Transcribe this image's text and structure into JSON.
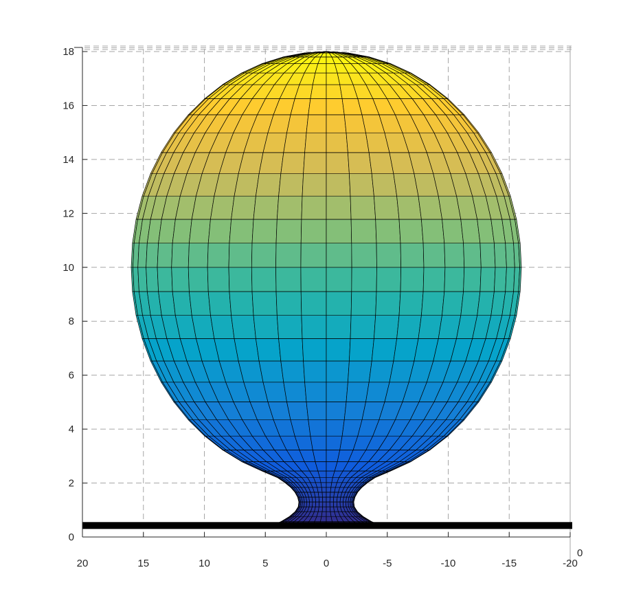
{
  "chart_data": {
    "type": "surface",
    "title": "",
    "xlabel": "",
    "ylabel": "",
    "zlabel": "",
    "view": "front (x horizontal reversed, z vertical)",
    "xlim": [
      20,
      -20
    ],
    "zlim": [
      0,
      18
    ],
    "xticks": [
      "20",
      "15",
      "10",
      "5",
      "0",
      "-5",
      "-10",
      "-15",
      "-20"
    ],
    "zticks": [
      "0",
      "2",
      "4",
      "6",
      "8",
      "10",
      "12",
      "14",
      "16",
      "18"
    ],
    "corner_tick": "0",
    "grid": true,
    "grid_style": "dashed",
    "colormap": "parula",
    "colormap_stops": [
      "#352a87",
      "#0f5cdd",
      "#1481d6",
      "#06a4ca",
      "#2eb7a4",
      "#87bf77",
      "#d1bb59",
      "#fec832",
      "#f9fb0e"
    ],
    "edge_color": "#000000",
    "objects": [
      {
        "name": "sphere",
        "center_z": 10,
        "half_height_z": 8,
        "half_width_x": 16
      },
      {
        "name": "neck",
        "z_range": [
          0.4,
          2.2
        ],
        "min_radius_x": 2.25,
        "waist_z": 1.25
      },
      {
        "name": "base plane",
        "z": 0.4,
        "x_range": [
          20,
          -20
        ],
        "color": "#000000"
      }
    ]
  }
}
